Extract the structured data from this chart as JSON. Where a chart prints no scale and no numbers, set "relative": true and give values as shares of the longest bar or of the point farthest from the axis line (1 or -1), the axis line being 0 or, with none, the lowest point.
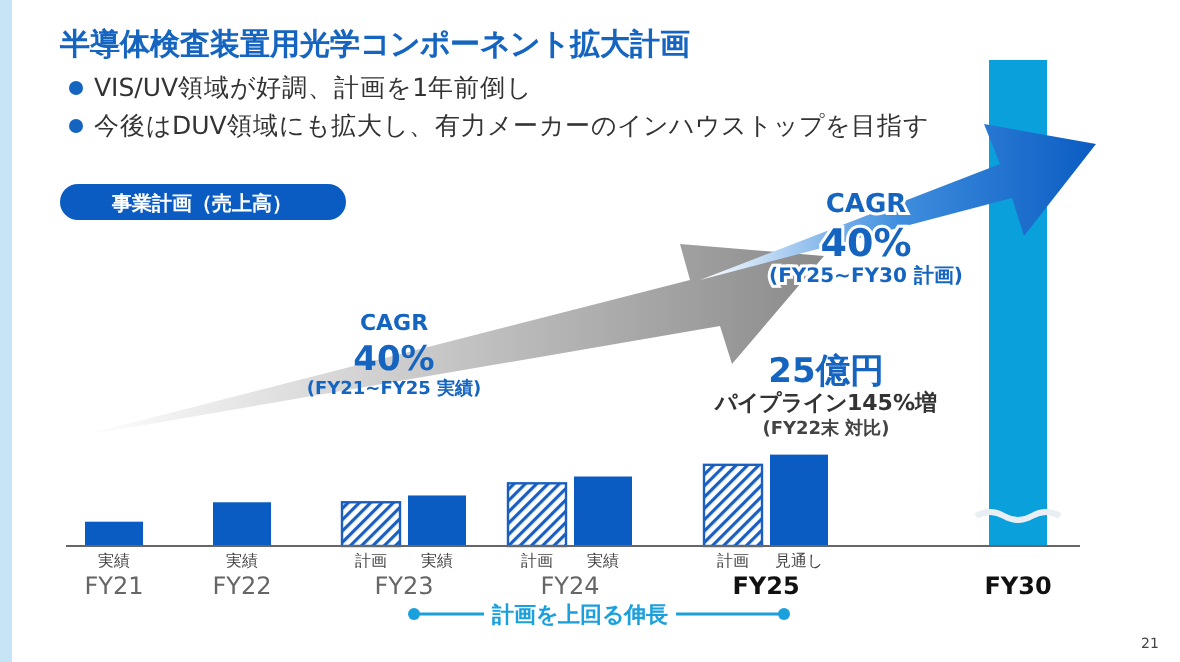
{
  "chart_data": {
    "type": "bar",
    "relative": true,
    "title": "半導体検査装置用光学コンポーネント拡大計画",
    "categories": [
      "FY21",
      "FY22",
      "FY23",
      "FY24",
      "FY25",
      "FY30"
    ],
    "series": [
      {
        "name": "計画",
        "color": "#1a5fc0",
        "values": [
          null,
          null,
          0.09,
          0.129,
          0.167,
          null
        ]
      },
      {
        "name": "実績",
        "color": "#0a5cc2",
        "values": [
          0.05,
          0.09,
          0.104,
          0.143,
          null,
          null
        ]
      },
      {
        "name": "見通し",
        "color": "#0a5cc2",
        "values": [
          null,
          null,
          null,
          null,
          0.188,
          null
        ]
      },
      {
        "color": "#0aa0dc",
        "values": [
          null,
          null,
          null,
          null,
          null,
          1
        ]
      }
    ],
    "annotations": [
      "VIS/UV領域が好調、計画を1年前倒し",
      "今後はDUV領域にも拡大し、有力メーカーのインハウストップを目指す",
      "事業計画（売上高）",
      "CAGR",
      "40%",
      "(FY21~FY25 実績)",
      "CAGR",
      "40%",
      "(FY25~FY30 計画)",
      "25億円",
      "パイプライン145%増",
      "(FY22末 対比)",
      "計画を上回る伸長",
      "21"
    ]
  }
}
